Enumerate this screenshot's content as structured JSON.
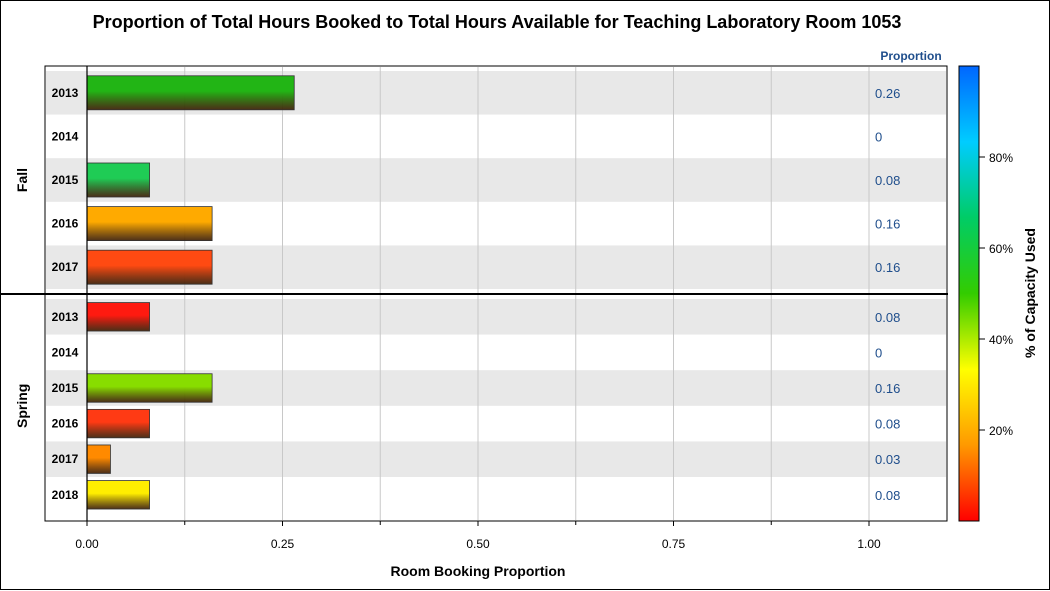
{
  "chart_data": {
    "type": "bar",
    "orientation": "horizontal",
    "title": "Proportion of Total Hours Booked to Total Hours Available for Teaching Laboratory Room 1053",
    "xlabel": "Room Booking Proportion",
    "xlim": [
      0,
      1.1
    ],
    "x_ticks": [
      "0.00",
      "0.25",
      "0.50",
      "0.75",
      "1.00"
    ],
    "x_tick_values": [
      0,
      0.25,
      0.5,
      0.75,
      1.0
    ],
    "value_column_header": "Proportion",
    "colorbar": {
      "label": "% of Capacity Used",
      "ticks": [
        "20%",
        "40%",
        "60%",
        "80%"
      ],
      "tick_values": [
        20,
        40,
        60,
        80
      ],
      "range": [
        0,
        100
      ],
      "stops": [
        "#ff0000",
        "#ff9900",
        "#ffff00",
        "#33cc00",
        "#00cc66",
        "#00ccff",
        "#0066ff"
      ]
    },
    "groups": [
      {
        "name": "Fall",
        "rows": [
          {
            "category": "2013",
            "value": 0.265,
            "label": "0.26",
            "color": "#22b515"
          },
          {
            "category": "2014",
            "value": 0,
            "label": "0",
            "color": "#ffffff"
          },
          {
            "category": "2015",
            "value": 0.08,
            "label": "0.08",
            "color": "#1fcc55"
          },
          {
            "category": "2016",
            "value": 0.16,
            "label": "0.16",
            "color": "#ffaa00"
          },
          {
            "category": "2017",
            "value": 0.16,
            "label": "0.16",
            "color": "#ff4a12"
          }
        ]
      },
      {
        "name": "Spring",
        "rows": [
          {
            "category": "2013",
            "value": 0.08,
            "label": "0.08",
            "color": "#ff1a10"
          },
          {
            "category": "2014",
            "value": 0,
            "label": "0",
            "color": "#ffffff"
          },
          {
            "category": "2015",
            "value": 0.16,
            "label": "0.16",
            "color": "#88dd00"
          },
          {
            "category": "2016",
            "value": 0.08,
            "label": "0.08",
            "color": "#ff3a14"
          },
          {
            "category": "2017",
            "value": 0.03,
            "label": "0.03",
            "color": "#ff8a00"
          },
          {
            "category": "2018",
            "value": 0.08,
            "label": "0.08",
            "color": "#ffee00"
          }
        ]
      }
    ],
    "grid": true,
    "band_color": "#e8e8e8"
  }
}
